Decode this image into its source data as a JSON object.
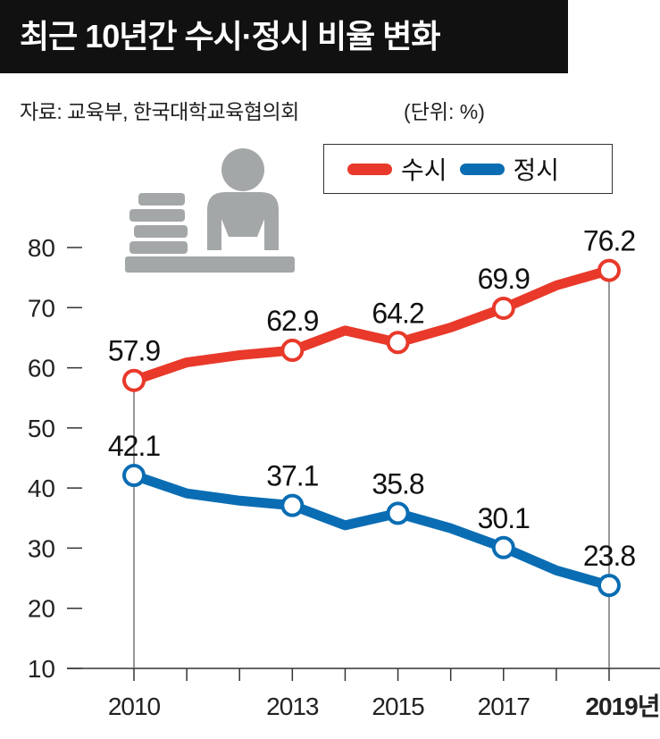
{
  "chart_data": {
    "type": "line",
    "title": "최근 10년간 수시·정시 비율 변화",
    "source": "자료: 교육부, 한국대학교육협의회",
    "unit": "(단위: %)",
    "x": [
      2010,
      2011,
      2012,
      2013,
      2014,
      2015,
      2016,
      2017,
      2018,
      2019
    ],
    "x_tick_labels": [
      {
        "x": 2010,
        "label": "2010"
      },
      {
        "x": 2013,
        "label": "2013"
      },
      {
        "x": 2015,
        "label": "2015"
      },
      {
        "x": 2017,
        "label": "2017"
      },
      {
        "x": 2019,
        "label": "2019년"
      }
    ],
    "y_ticks": [
      10,
      20,
      30,
      40,
      50,
      60,
      70,
      80
    ],
    "ylim": [
      10,
      80
    ],
    "legend_position": "top-right",
    "series": [
      {
        "name": "수시",
        "color": "#e8392a",
        "values": [
          57.9,
          60.9,
          62.1,
          62.9,
          66.2,
          64.2,
          66.7,
          69.9,
          73.7,
          76.2
        ],
        "labeled": [
          0,
          3,
          5,
          7,
          9
        ]
      },
      {
        "name": "정시",
        "color": "#0a6db3",
        "values": [
          42.1,
          39.1,
          37.9,
          37.1,
          33.8,
          35.8,
          33.3,
          30.1,
          26.3,
          23.8
        ],
        "labeled": [
          0,
          3,
          5,
          7,
          9
        ]
      }
    ]
  }
}
